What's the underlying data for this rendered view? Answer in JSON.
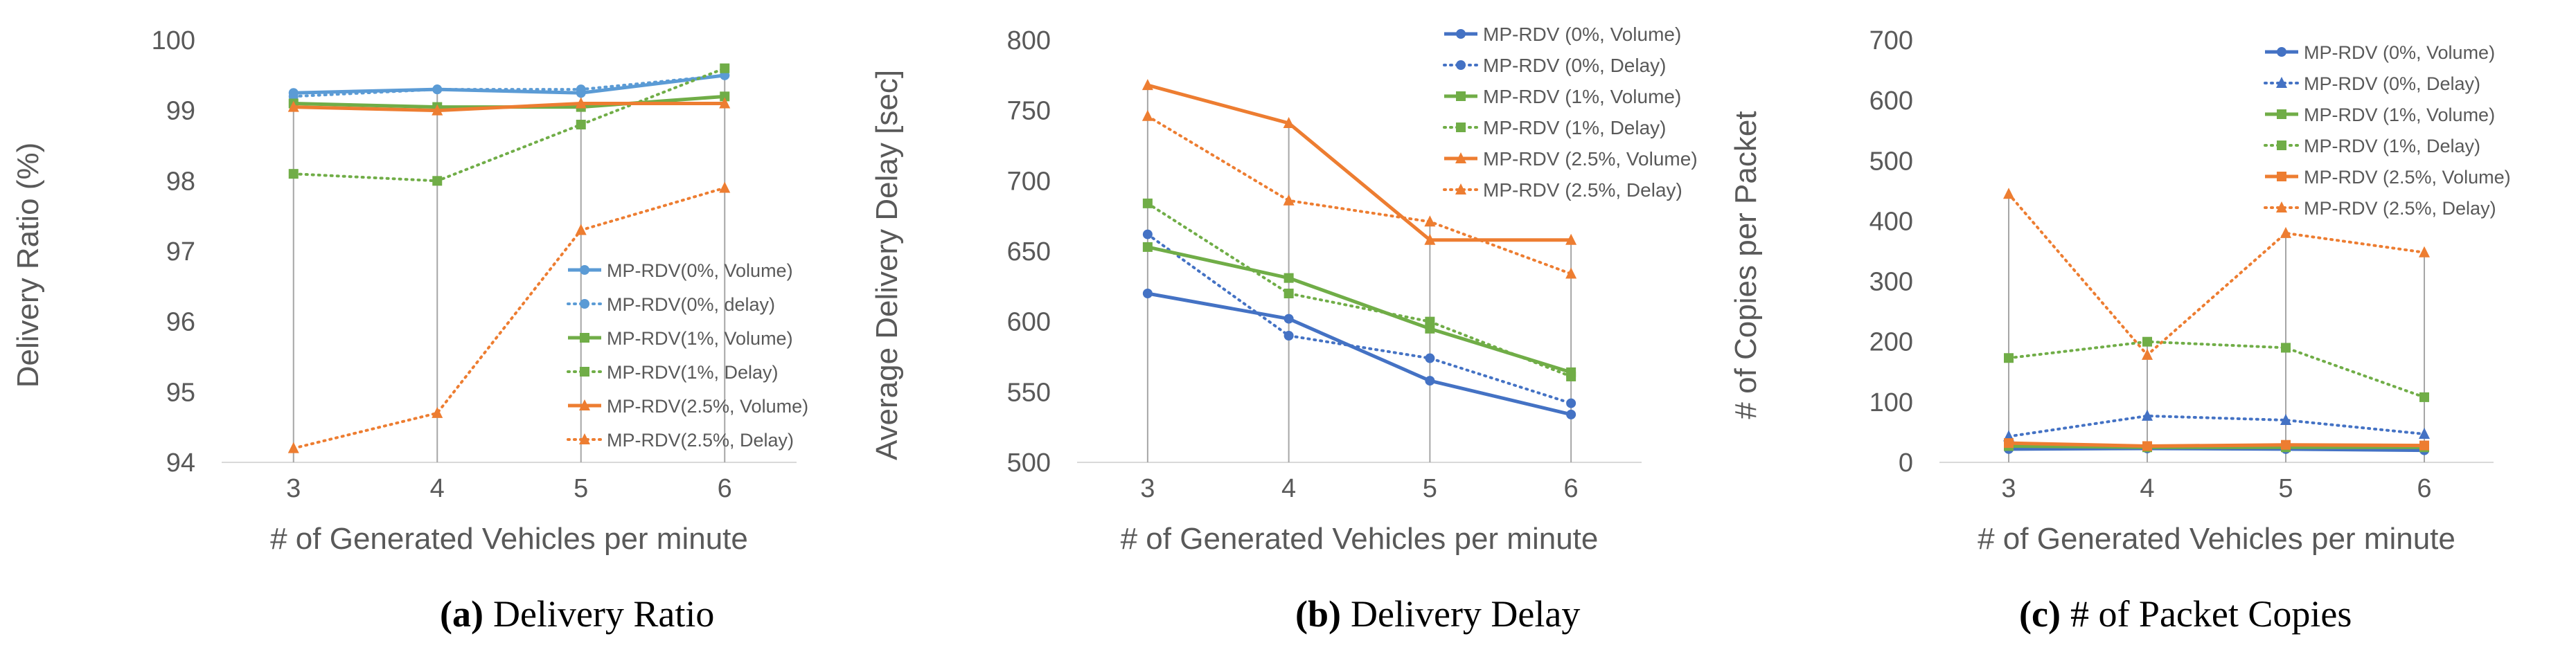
{
  "colors": {
    "blue": "#4472C4",
    "light_blue": "#5B9BD5",
    "green": "#70AD47",
    "orange": "#ED7D31",
    "grid": "#A6A6A6",
    "text": "#595959"
  },
  "chart_data": [
    {
      "type": "line",
      "caption_letter": "(a)",
      "caption_text": "Delivery Ratio",
      "title": "",
      "xlabel": "# of Generated Vehicles per minute",
      "ylabel": "Delivery Ratio (%)",
      "categories": [
        "3",
        "4",
        "5",
        "6"
      ],
      "ylim": [
        94,
        100
      ],
      "yticks": [
        "94",
        "95",
        "96",
        "97",
        "98",
        "99",
        "100"
      ],
      "legend_position": "bottom-right",
      "series": [
        {
          "name": "MP-RDV(0%, Volume)",
          "values": [
            99.25,
            99.3,
            99.25,
            99.5
          ],
          "color": "#5B9BD5",
          "dash": "solid",
          "marker": "circle"
        },
        {
          "name": "MP-RDV(0%, delay)",
          "values": [
            99.2,
            99.3,
            99.3,
            99.5
          ],
          "color": "#5B9BD5",
          "dash": "dotted",
          "marker": "circle"
        },
        {
          "name": "MP-RDV(1%, Volume)",
          "values": [
            99.1,
            99.05,
            99.05,
            99.2
          ],
          "color": "#70AD47",
          "dash": "solid",
          "marker": "square"
        },
        {
          "name": "MP-RDV(1%, Delay)",
          "values": [
            98.1,
            98.0,
            98.8,
            99.6
          ],
          "color": "#70AD47",
          "dash": "dotted",
          "marker": "square"
        },
        {
          "name": "MP-RDV(2.5%, Volume)",
          "values": [
            99.05,
            99.0,
            99.1,
            99.1
          ],
          "color": "#ED7D31",
          "dash": "solid",
          "marker": "triangle"
        },
        {
          "name": "MP-RDV(2.5%, Delay)",
          "values": [
            94.2,
            94.7,
            97.3,
            97.9
          ],
          "color": "#ED7D31",
          "dash": "dotted",
          "marker": "triangle"
        }
      ]
    },
    {
      "type": "line",
      "caption_letter": "(b)",
      "caption_text": "Delivery Delay",
      "title": "",
      "xlabel": "# of Generated Vehicles per minute",
      "ylabel": "Average Delivery Delay [sec]",
      "categories": [
        "3",
        "4",
        "5",
        "6"
      ],
      "ylim": [
        500,
        800
      ],
      "yticks": [
        "500",
        "550",
        "600",
        "650",
        "700",
        "750",
        "800"
      ],
      "legend_position": "top-right",
      "series": [
        {
          "name": "MP-RDV (0%, Volume)",
          "values": [
            620,
            602,
            558,
            534
          ],
          "color": "#4472C4",
          "dash": "solid",
          "marker": "circle"
        },
        {
          "name": "MP-RDV (0%, Delay)",
          "values": [
            662,
            590,
            574,
            542
          ],
          "color": "#4472C4",
          "dash": "dotted",
          "marker": "circle"
        },
        {
          "name": "MP-RDV (1%, Volume)",
          "values": [
            653,
            631,
            595,
            564
          ],
          "color": "#70AD47",
          "dash": "solid",
          "marker": "square"
        },
        {
          "name": "MP-RDV (1%, Delay)",
          "values": [
            684,
            620,
            600,
            561
          ],
          "color": "#70AD47",
          "dash": "dotted",
          "marker": "square"
        },
        {
          "name": "MP-RDV (2.5%, Volume)",
          "values": [
            768,
            741,
            658,
            658
          ],
          "color": "#ED7D31",
          "dash": "solid",
          "marker": "triangle"
        },
        {
          "name": "MP-RDV (2.5%, Delay)",
          "values": [
            746,
            686,
            671,
            634
          ],
          "color": "#ED7D31",
          "dash": "dotted",
          "marker": "triangle"
        }
      ]
    },
    {
      "type": "line",
      "caption_letter": "(c)",
      "caption_text": "# of Packet Copies",
      "title": "",
      "xlabel": "# of Generated Vehicles per minute",
      "ylabel": "# of Copies per Packet",
      "categories": [
        "3",
        "4",
        "5",
        "6"
      ],
      "ylim": [
        0,
        700
      ],
      "yticks": [
        "0",
        "100",
        "200",
        "300",
        "400",
        "500",
        "600",
        "700"
      ],
      "legend_position": "top-right",
      "series": [
        {
          "name": "MP-RDV (0%, Volume)",
          "values": [
            22,
            23,
            22,
            20
          ],
          "color": "#4472C4",
          "dash": "solid",
          "marker": "circle"
        },
        {
          "name": "MP-RDV (0%, Delay)",
          "values": [
            43,
            77,
            70,
            47
          ],
          "color": "#4472C4",
          "dash": "dotted",
          "marker": "triangle"
        },
        {
          "name": "MP-RDV (1%, Volume)",
          "values": [
            27,
            25,
            25,
            25
          ],
          "color": "#70AD47",
          "dash": "solid",
          "marker": "square"
        },
        {
          "name": "MP-RDV (1%, Delay)",
          "values": [
            173,
            200,
            190,
            108
          ],
          "color": "#70AD47",
          "dash": "dotted",
          "marker": "square"
        },
        {
          "name": "MP-RDV (2.5%, Volume)",
          "values": [
            32,
            27,
            29,
            28
          ],
          "color": "#ED7D31",
          "dash": "solid",
          "marker": "square"
        },
        {
          "name": "MP-RDV (2.5%, Delay)",
          "values": [
            445,
            178,
            380,
            348
          ],
          "color": "#ED7D31",
          "dash": "dotted",
          "marker": "triangle"
        }
      ]
    }
  ]
}
